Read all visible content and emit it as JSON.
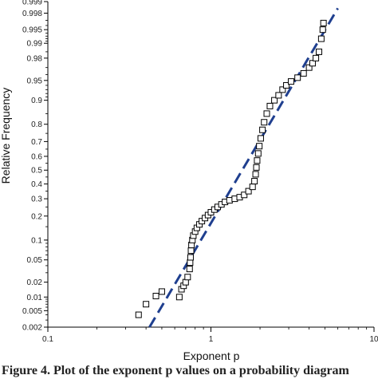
{
  "chart_data": {
    "type": "scatter",
    "xlabel": "Exponent p",
    "ylabel": "Relative Frequency",
    "xscale": "log",
    "yscale": "normal-probability",
    "xlim": [
      0.1,
      10
    ],
    "ylim": [
      0.002,
      0.999
    ],
    "x_ticks": [
      0.1,
      1,
      10
    ],
    "y_ticks": [
      0.002,
      0.005,
      0.01,
      0.02,
      0.05,
      0.1,
      0.2,
      0.3,
      0.4,
      0.5,
      0.6,
      0.7,
      0.8,
      0.9,
      0.95,
      0.98,
      0.99,
      0.995,
      0.998,
      0.999
    ],
    "grid": false,
    "marker": "open-square",
    "marker_color": "#000000",
    "fit_line": {
      "style": "dashed",
      "color": "#1f3f8f",
      "points": [
        [
          0.42,
          0.002
        ],
        [
          6.0,
          0.9985
        ]
      ]
    },
    "series": [
      {
        "values": [
          [
            0.36,
            0.004
          ],
          [
            0.4,
            0.007
          ],
          [
            0.46,
            0.0105
          ],
          [
            0.5,
            0.013
          ],
          [
            0.64,
            0.01
          ],
          [
            0.66,
            0.0145
          ],
          [
            0.68,
            0.017
          ],
          [
            0.7,
            0.02
          ],
          [
            0.72,
            0.025
          ],
          [
            0.74,
            0.035
          ],
          [
            0.745,
            0.045
          ],
          [
            0.75,
            0.055
          ],
          [
            0.755,
            0.07
          ],
          [
            0.76,
            0.085
          ],
          [
            0.77,
            0.1
          ],
          [
            0.78,
            0.115
          ],
          [
            0.8,
            0.13
          ],
          [
            0.82,
            0.145
          ],
          [
            0.85,
            0.16
          ],
          [
            0.88,
            0.175
          ],
          [
            0.92,
            0.19
          ],
          [
            0.96,
            0.205
          ],
          [
            1.0,
            0.22
          ],
          [
            1.05,
            0.235
          ],
          [
            1.1,
            0.25
          ],
          [
            1.16,
            0.265
          ],
          [
            1.22,
            0.28
          ],
          [
            1.3,
            0.29
          ],
          [
            1.4,
            0.3
          ],
          [
            1.5,
            0.31
          ],
          [
            1.6,
            0.325
          ],
          [
            1.7,
            0.35
          ],
          [
            1.8,
            0.38
          ],
          [
            1.85,
            0.42
          ],
          [
            1.88,
            0.47
          ],
          [
            1.9,
            0.52
          ],
          [
            1.92,
            0.57
          ],
          [
            1.95,
            0.62
          ],
          [
            1.98,
            0.67
          ],
          [
            2.02,
            0.72
          ],
          [
            2.07,
            0.77
          ],
          [
            2.12,
            0.81
          ],
          [
            2.2,
            0.85
          ],
          [
            2.3,
            0.88
          ],
          [
            2.45,
            0.9
          ],
          [
            2.6,
            0.915
          ],
          [
            2.75,
            0.93
          ],
          [
            2.9,
            0.94
          ],
          [
            3.1,
            0.948
          ],
          [
            3.4,
            0.955
          ],
          [
            3.7,
            0.962
          ],
          [
            4.0,
            0.97
          ],
          [
            4.2,
            0.975
          ],
          [
            4.4,
            0.98
          ],
          [
            4.6,
            0.985
          ],
          [
            4.75,
            0.992
          ],
          [
            4.85,
            0.995
          ],
          [
            4.9,
            0.9965
          ]
        ]
      }
    ]
  },
  "caption": "Figure 4. Plot of the exponent p values on a probability diagram"
}
